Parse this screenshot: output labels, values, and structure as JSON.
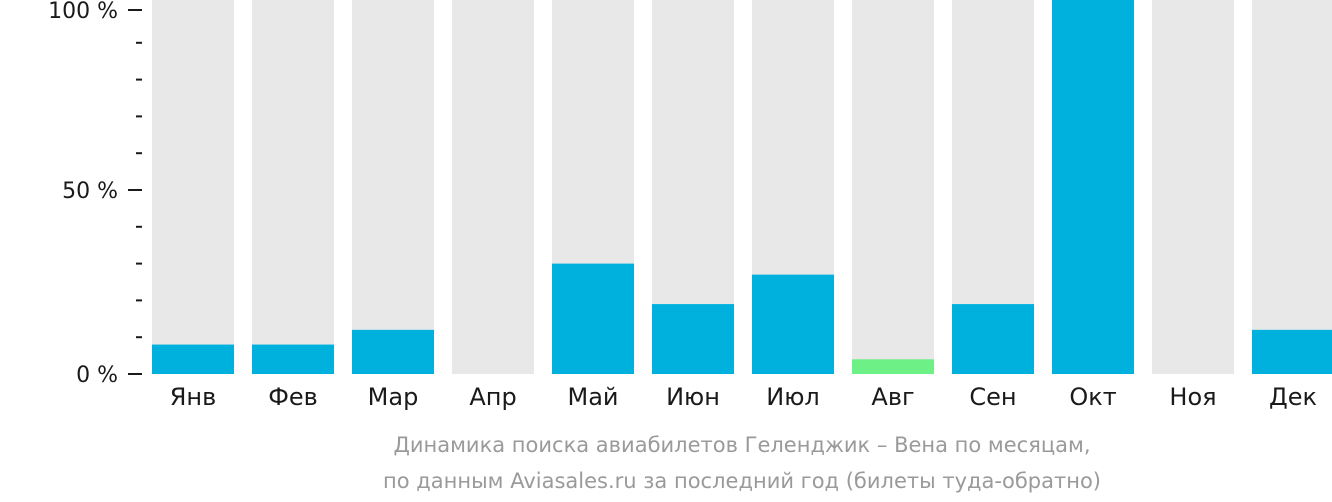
{
  "chart_data": {
    "type": "bar",
    "categories": [
      "Янв",
      "Фев",
      "Мар",
      "Апр",
      "Май",
      "Июн",
      "Июл",
      "Авг",
      "Сен",
      "Окт",
      "Ноя",
      "Дек"
    ],
    "values": [
      8,
      8,
      12,
      0,
      30,
      19,
      27,
      4,
      19,
      100,
      0,
      12
    ],
    "background_max": 100,
    "highlight_index": 7,
    "ylim": [
      0,
      100
    ],
    "yticks": [
      {
        "value": 100,
        "label": "100 %"
      },
      {
        "value": 50,
        "label": "50 %"
      },
      {
        "value": 0,
        "label": "0 %"
      }
    ],
    "minor_tick_step": 10,
    "caption_lines": [
      "Динамика поиска авиабилетов Геленджик – Вена по месяцам,",
      "по данным Aviasales.ru за последний год (билеты туда-обратно)"
    ],
    "colors": {
      "bar": "#00b1dd",
      "highlight": "#6df086",
      "background_bar": "#e8e8e8",
      "axis": "#1a1a1a"
    }
  }
}
